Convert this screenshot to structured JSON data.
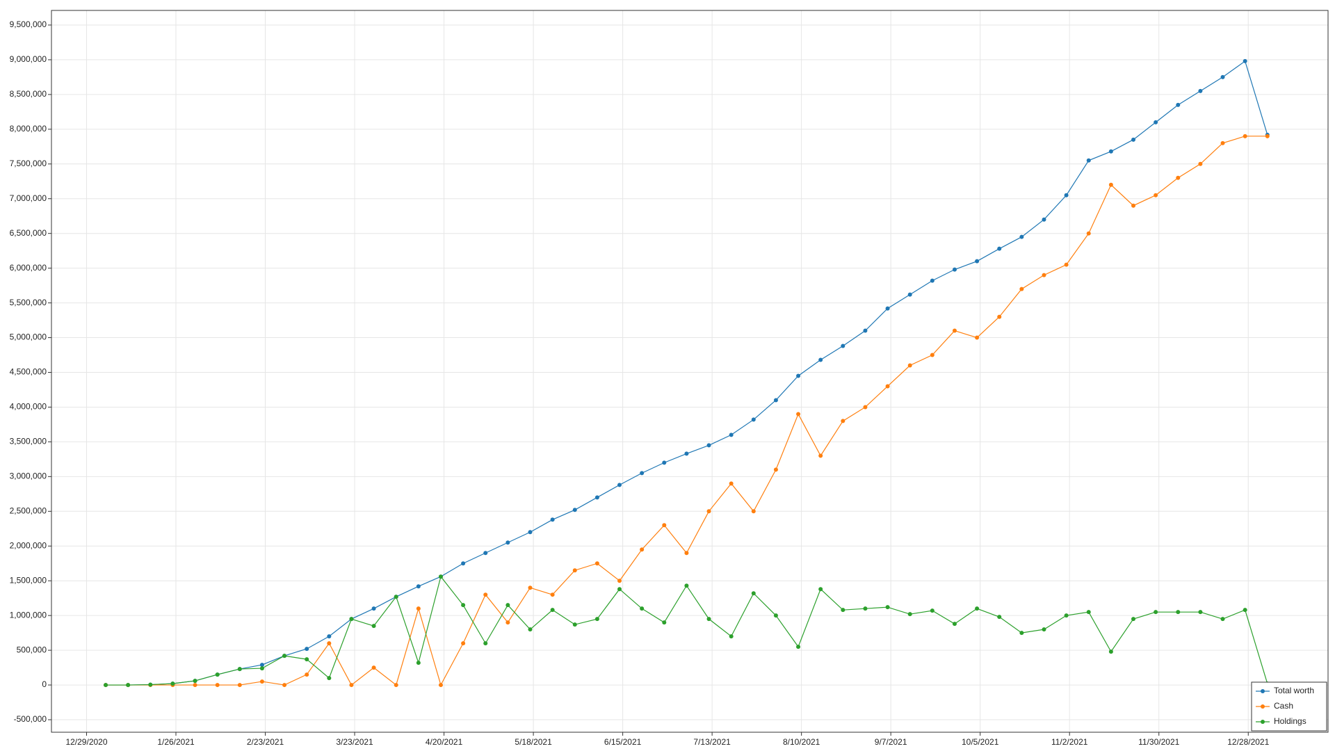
{
  "chart_data": {
    "type": "line",
    "x": [
      "2021-01-04",
      "2021-01-11",
      "2021-01-18",
      "2021-01-25",
      "2021-02-01",
      "2021-02-08",
      "2021-02-15",
      "2021-02-22",
      "2021-03-01",
      "2021-03-08",
      "2021-03-15",
      "2021-03-22",
      "2021-03-29",
      "2021-04-05",
      "2021-04-12",
      "2021-04-19",
      "2021-04-26",
      "2021-05-03",
      "2021-05-10",
      "2021-05-17",
      "2021-05-24",
      "2021-05-31",
      "2021-06-07",
      "2021-06-14",
      "2021-06-21",
      "2021-06-28",
      "2021-07-05",
      "2021-07-12",
      "2021-07-19",
      "2021-07-26",
      "2021-08-02",
      "2021-08-09",
      "2021-08-16",
      "2021-08-23",
      "2021-08-30",
      "2021-09-06",
      "2021-09-13",
      "2021-09-20",
      "2021-09-27",
      "2021-10-04",
      "2021-10-11",
      "2021-10-18",
      "2021-10-25",
      "2021-11-01",
      "2021-11-08",
      "2021-11-15",
      "2021-11-22",
      "2021-11-29",
      "2021-12-06",
      "2021-12-13",
      "2021-12-20",
      "2021-12-27",
      "2022-01-03"
    ],
    "series": [
      {
        "name": "Total worth",
        "color": "#1f77b4",
        "values": [
          0,
          0,
          5000,
          20000,
          60000,
          150000,
          230000,
          290000,
          420000,
          520000,
          700000,
          950000,
          1100000,
          1270000,
          1420000,
          1560000,
          1750000,
          1900000,
          2050000,
          2200000,
          2380000,
          2520000,
          2700000,
          2880000,
          3050000,
          3200000,
          3330000,
          3450000,
          3600000,
          3820000,
          4100000,
          4450000,
          4680000,
          4880000,
          5100000,
          5420000,
          5620000,
          5820000,
          5980000,
          6100000,
          6280000,
          6450000,
          6700000,
          7050000,
          7550000,
          7680000,
          7850000,
          8100000,
          8350000,
          8550000,
          8750000,
          8980000,
          7920000
        ]
      },
      {
        "name": "Cash",
        "color": "#ff7f0e",
        "values": [
          0,
          0,
          0,
          0,
          0,
          0,
          0,
          50000,
          0,
          150000,
          600000,
          0,
          250000,
          0,
          1100000,
          0,
          600000,
          1300000,
          900000,
          1400000,
          1300000,
          1650000,
          1750000,
          1500000,
          1950000,
          2300000,
          1900000,
          2500000,
          2900000,
          2500000,
          3100000,
          3900000,
          3300000,
          3800000,
          4000000,
          4300000,
          4600000,
          4750000,
          5100000,
          5000000,
          5300000,
          5700000,
          5900000,
          6050000,
          6500000,
          7200000,
          6900000,
          7050000,
          7300000,
          7500000,
          7800000,
          7900000,
          7900000
        ]
      },
      {
        "name": "Holdings",
        "color": "#2ca02c",
        "values": [
          0,
          0,
          5000,
          20000,
          60000,
          150000,
          230000,
          240000,
          420000,
          370000,
          100000,
          950000,
          850000,
          1270000,
          320000,
          1560000,
          1150000,
          600000,
          1150000,
          800000,
          1080000,
          870000,
          950000,
          1380000,
          1100000,
          900000,
          1430000,
          950000,
          700000,
          1320000,
          1000000,
          550000,
          1380000,
          1080000,
          1100000,
          1120000,
          1020000,
          1070000,
          880000,
          1100000,
          980000,
          750000,
          800000,
          1000000,
          1050000,
          480000,
          950000,
          1050000,
          1050000,
          1050000,
          950000,
          1080000,
          20000
        ]
      }
    ],
    "xlim": [
      "2020-12-18",
      "2022-01-22"
    ],
    "xticks": [
      {
        "value": "2020-12-29",
        "label": "12/29/2020"
      },
      {
        "value": "2021-01-26",
        "label": "1/26/2021"
      },
      {
        "value": "2021-02-23",
        "label": "2/23/2021"
      },
      {
        "value": "2021-03-23",
        "label": "3/23/2021"
      },
      {
        "value": "2021-04-20",
        "label": "4/20/2021"
      },
      {
        "value": "2021-05-18",
        "label": "5/18/2021"
      },
      {
        "value": "2021-06-15",
        "label": "6/15/2021"
      },
      {
        "value": "2021-07-13",
        "label": "7/13/2021"
      },
      {
        "value": "2021-08-10",
        "label": "8/10/2021"
      },
      {
        "value": "2021-09-07",
        "label": "9/7/2021"
      },
      {
        "value": "2021-10-05",
        "label": "10/5/2021"
      },
      {
        "value": "2021-11-02",
        "label": "11/2/2021"
      },
      {
        "value": "2021-11-30",
        "label": "11/30/2021"
      },
      {
        "value": "2021-12-28",
        "label": "12/28/2021"
      }
    ],
    "ylim": [
      -680000,
      9710000
    ],
    "yticks": [
      {
        "value": -500000,
        "label": "-500,000"
      },
      0,
      {
        "value": 500000,
        "label": "500,000"
      },
      {
        "value": 1000000,
        "label": "1,000,000"
      },
      {
        "value": 1500000,
        "label": "1,500,000"
      },
      {
        "value": 2000000,
        "label": "2,000,000"
      },
      {
        "value": 2500000,
        "label": "2,500,000"
      },
      {
        "value": 3000000,
        "label": "3,000,000"
      },
      {
        "value": 3500000,
        "label": "3,500,000"
      },
      {
        "value": 4000000,
        "label": "4,000,000"
      },
      {
        "value": 4500000,
        "label": "4,500,000"
      },
      {
        "value": 5000000,
        "label": "5,000,000"
      },
      {
        "value": 5500000,
        "label": "5,500,000"
      },
      {
        "value": 6000000,
        "label": "6,000,000"
      },
      {
        "value": 6500000,
        "label": "6,500,000"
      },
      {
        "value": 7000000,
        "label": "7,000,000"
      },
      {
        "value": 7500000,
        "label": "7,500,000"
      },
      {
        "value": 8000000,
        "label": "8,000,000"
      },
      {
        "value": 8500000,
        "label": "8,500,000"
      },
      {
        "value": 9000000,
        "label": "9,000,000"
      },
      {
        "value": 9500000,
        "label": "9,500,000"
      }
    ],
    "grid": true,
    "legend": "lower right"
  }
}
